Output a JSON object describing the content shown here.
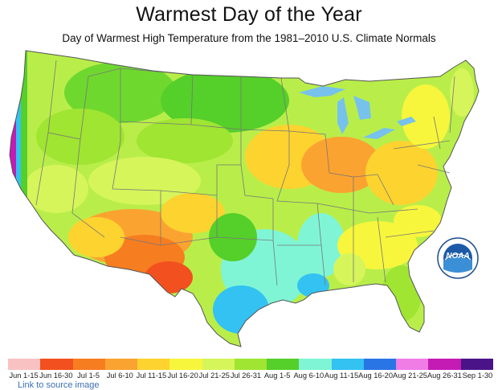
{
  "title": "Warmest Day of the Year",
  "subtitle": "Day of Warmest High Temperature from the 1981–2010 U.S. Climate Normals",
  "legend": [
    {
      "label": "Jun 1-15",
      "color": "#f9c2c2"
    },
    {
      "label": "Jun 16-30",
      "color": "#f2501f"
    },
    {
      "label": "Jul 1-5",
      "color": "#f77d21"
    },
    {
      "label": "Jul 6-10",
      "color": "#fba331"
    },
    {
      "label": "Jul 11-15",
      "color": "#fdd32f"
    },
    {
      "label": "Jul 16-20",
      "color": "#f7f63c"
    },
    {
      "label": "Jul 21-25",
      "color": "#d6f55b"
    },
    {
      "label": "Jul 26-31",
      "color": "#9fe532"
    },
    {
      "label": "Aug 1-5",
      "color": "#55cf2a"
    },
    {
      "label": "Aug 6-10",
      "color": "#7ff5d6"
    },
    {
      "label": "Aug 11-15",
      "color": "#33c2f2"
    },
    {
      "label": "Aug 16-20",
      "color": "#2a75e6"
    },
    {
      "label": "Aug 21-25",
      "color": "#f07ce6"
    },
    {
      "label": "Aug 26-31",
      "color": "#c41bb5"
    },
    {
      "label": "Sep 1-30",
      "color": "#4a1488"
    }
  ],
  "logo": {
    "text": "NOAA"
  },
  "source_link": "Link to source image",
  "colors": {
    "lake": "#76c2ec",
    "ocean": "#ffffff",
    "state_border": "#777777"
  }
}
